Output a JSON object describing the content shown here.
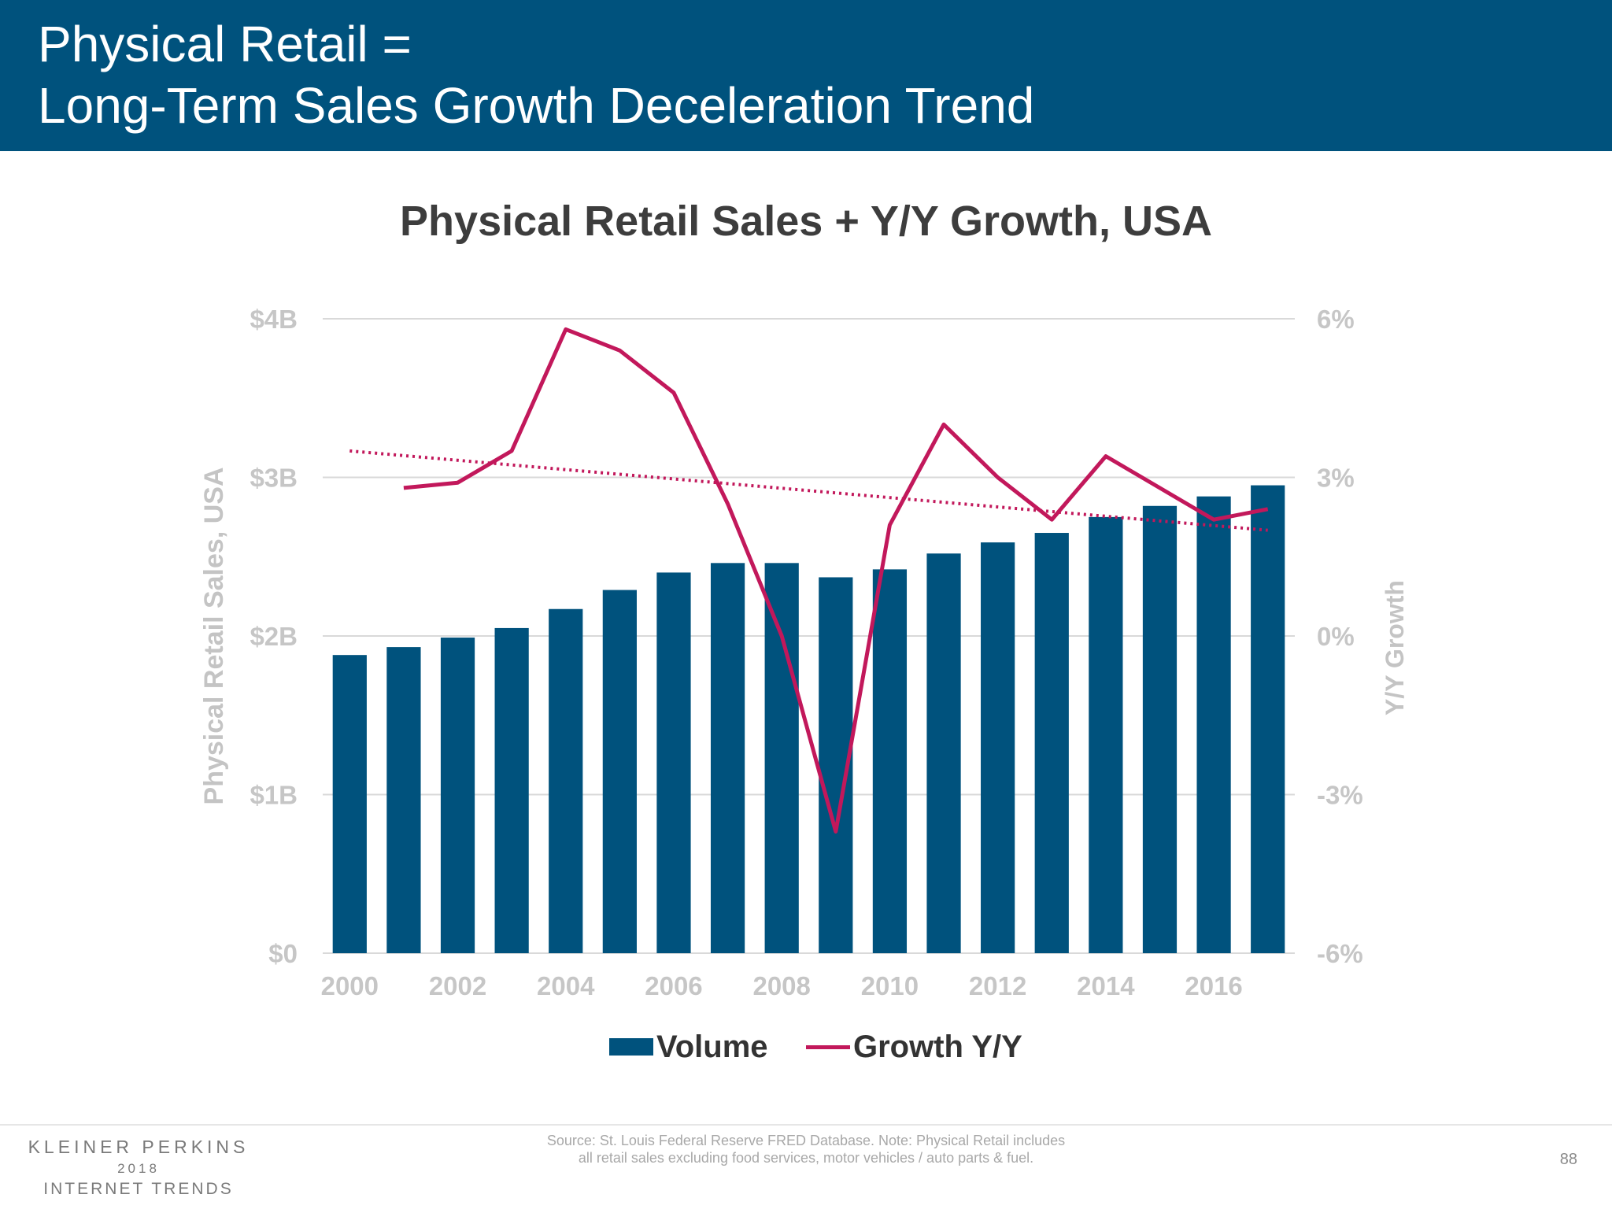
{
  "slide": {
    "title_line1": "Physical Retail =",
    "title_line2": "Long-Term Sales Growth Deceleration Trend",
    "brand_line1": "KLEINER PERKINS",
    "brand_line2": "2018",
    "brand_line3": "INTERNET TRENDS",
    "source_line1": "Source: St. Louis Federal Reserve FRED Database.  Note: Physical Retail includes",
    "source_line2": "all retail sales excluding food services, motor vehicles / auto parts & fuel.",
    "page_number": "88"
  },
  "colors": {
    "header_bg": "#00527d",
    "bar": "#00527d",
    "line": "#c2185b",
    "trend": "#c2185b",
    "axis_text": "#c4c4c4",
    "grid": "#d9d9d9"
  },
  "chart_data": {
    "type": "bar",
    "title": "Physical Retail Sales + Y/Y Growth, USA",
    "xlabel": "",
    "ylabel": "Physical Retail Sales, USA",
    "y2label": "Y/Y Growth",
    "ylim": [
      0,
      4
    ],
    "y2lim": [
      -6,
      6
    ],
    "y_ticks": [
      "$0",
      "$1B",
      "$2B",
      "$3B",
      "$4B"
    ],
    "y2_ticks": [
      "-6%",
      "-3%",
      "0%",
      "3%",
      "6%"
    ],
    "x_tick_labels": [
      "2000",
      "2002",
      "2004",
      "2006",
      "2008",
      "2010",
      "2012",
      "2014",
      "2016"
    ],
    "categories": [
      2000,
      2001,
      2002,
      2003,
      2004,
      2005,
      2006,
      2007,
      2008,
      2009,
      2010,
      2011,
      2012,
      2013,
      2014,
      2015,
      2016,
      2017
    ],
    "legend_position": "bottom",
    "grid": true,
    "series": [
      {
        "name": "Volume",
        "type": "bar",
        "axis": "left",
        "values": [
          1.88,
          1.93,
          1.99,
          2.05,
          2.17,
          2.29,
          2.4,
          2.46,
          2.46,
          2.37,
          2.42,
          2.52,
          2.59,
          2.65,
          2.75,
          2.82,
          2.88,
          2.95
        ]
      },
      {
        "name": "Growth Y/Y",
        "type": "line",
        "axis": "right",
        "values": [
          null,
          2.8,
          2.9,
          3.5,
          5.8,
          5.4,
          4.6,
          2.5,
          0.0,
          -3.7,
          2.1,
          4.0,
          3.0,
          2.2,
          3.4,
          2.8,
          2.2,
          2.4
        ]
      },
      {
        "type": "trendline",
        "axis": "right",
        "start": {
          "x": 2000,
          "y": 3.5
        },
        "end": {
          "x": 2017,
          "y": 2.0
        }
      }
    ]
  }
}
